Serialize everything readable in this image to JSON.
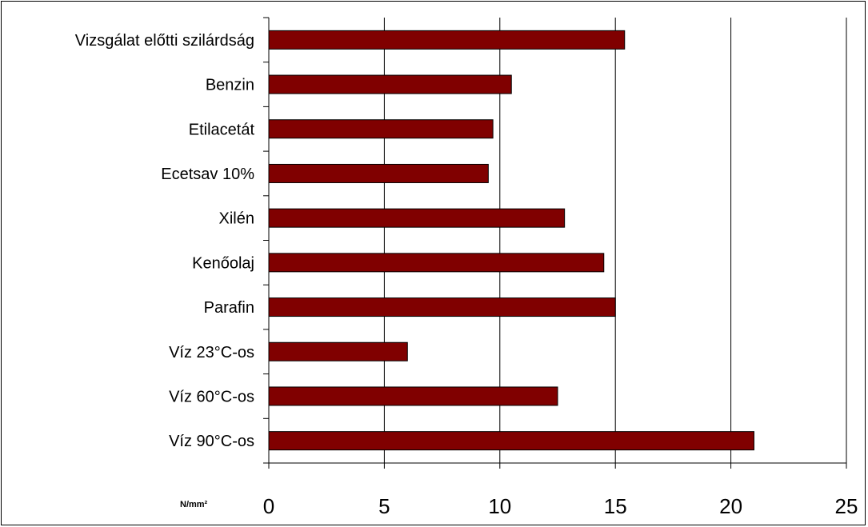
{
  "chart_data": {
    "type": "bar",
    "orientation": "horizontal",
    "categories": [
      "Vizsgálat előtti szilárdság",
      "Benzin",
      "Etilacetát",
      "Ecetsav 10%",
      "Xilén",
      "Kenőolaj",
      "Parafin",
      "Víz 23°C-os",
      "Víz 60°C-os",
      "Víz 90°C-os"
    ],
    "values": [
      15.4,
      10.5,
      9.7,
      9.5,
      12.8,
      14.5,
      15.0,
      6.0,
      12.5,
      21.0
    ],
    "xlim": [
      0,
      25
    ],
    "xticks": [
      "0",
      "5",
      "10",
      "15",
      "20",
      "25"
    ],
    "unit_label": "N/mm²",
    "bar_color": "#800000",
    "grid": "vertical"
  }
}
